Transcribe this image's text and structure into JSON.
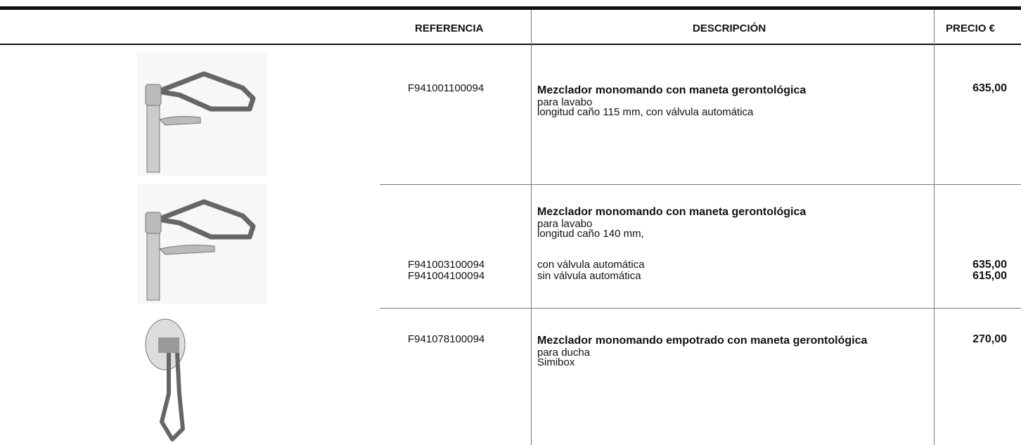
{
  "header": {
    "columns": [
      "REFERENCIA",
      "DESCRIPCIÓN",
      "PRECIO €"
    ]
  },
  "rows": [
    {
      "title": "Mezclador monomando con maneta gerontológica",
      "lines": [
        "para lavabo",
        "longitud caño 115 mm, con válvula automática"
      ],
      "items": [
        {
          "reference": "F941001100094",
          "price": "635,00"
        }
      ]
    },
    {
      "title": "Mezclador monomando con maneta gerontológica",
      "lines": [
        "para lavabo",
        "longitud caño 140 mm,"
      ],
      "items": [
        {
          "reference": "F941003100094",
          "description": "con válvula automática",
          "price": "635,00"
        },
        {
          "reference": "F941004100094",
          "description": "sin válvula automática",
          "price": "615,00"
        }
      ]
    },
    {
      "title": "Mezclador monomando empotrado con maneta gerontológica",
      "lines": [
        "para ducha",
        "Simibox"
      ],
      "items": [
        {
          "reference": "F941078100094",
          "price": "270,00"
        }
      ]
    }
  ]
}
